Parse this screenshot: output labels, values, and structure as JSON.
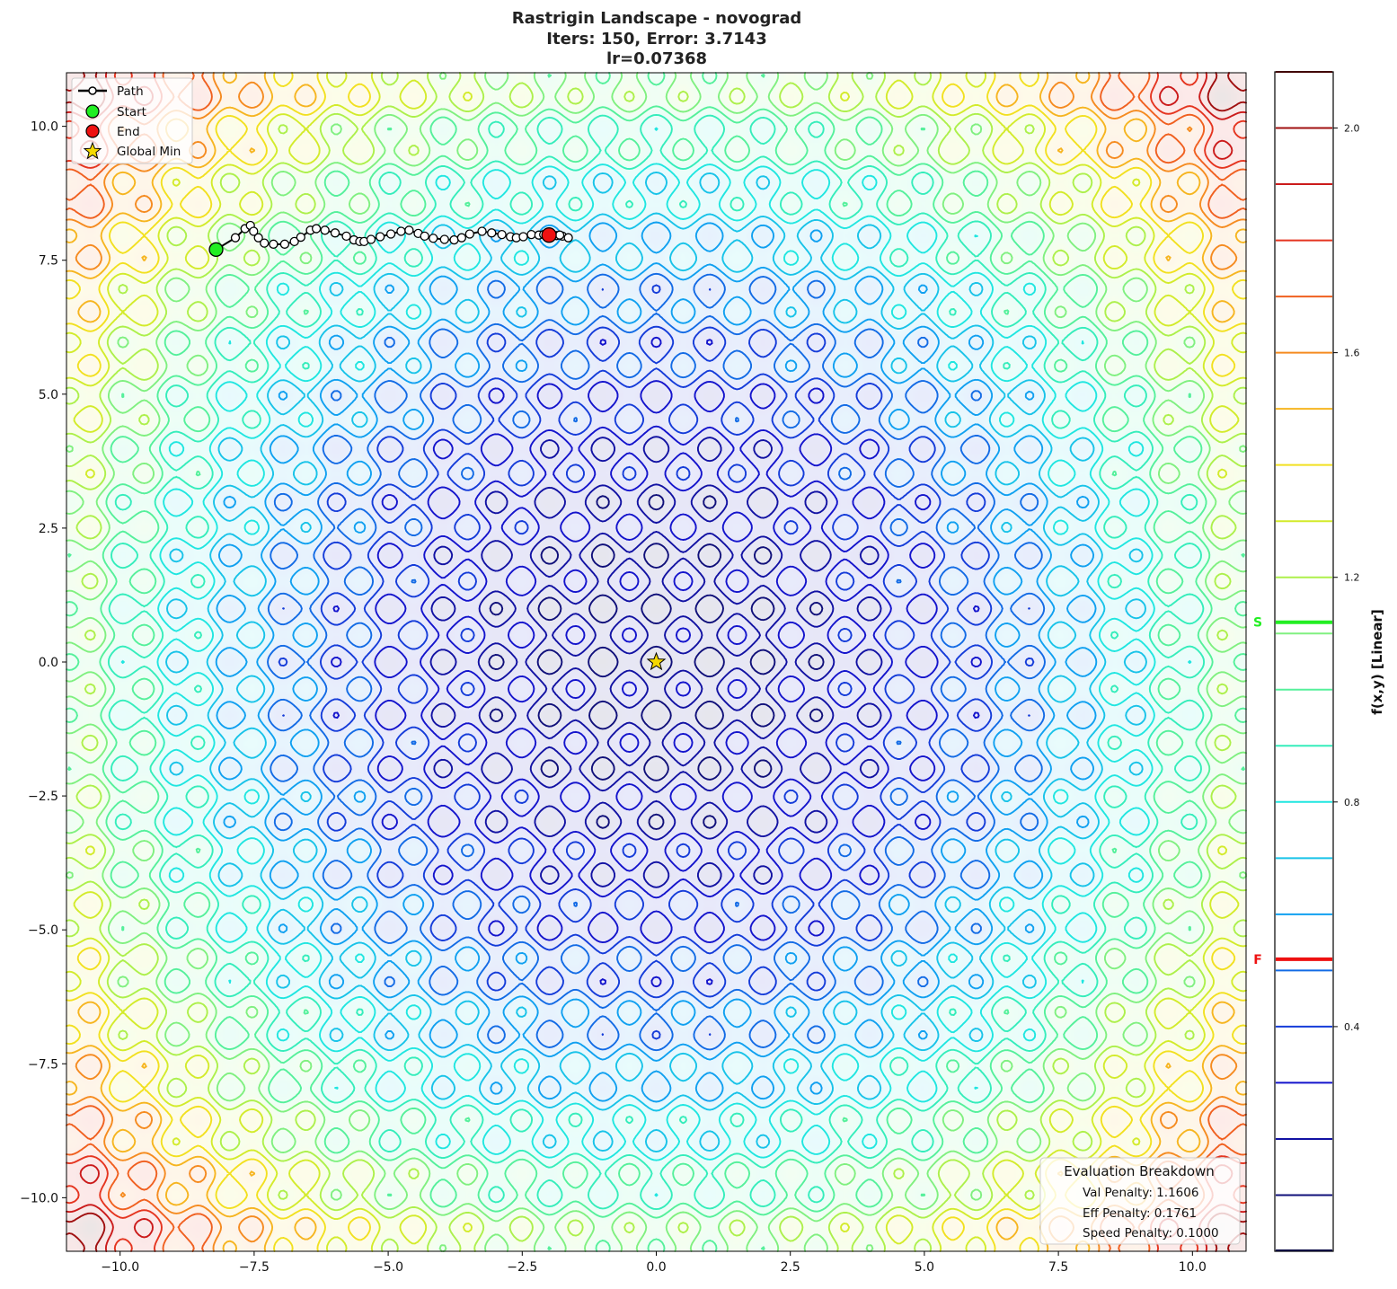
{
  "title": {
    "line1": "Rastrigin Landscape - novograd",
    "line2": "Iters: 150, Error: 3.7143",
    "line3": "lr=0.07368"
  },
  "legend": {
    "path": "Path",
    "start": "Start",
    "end": "End",
    "global_min": "Global Min"
  },
  "evaluation": {
    "title": "Evaluation Breakdown",
    "val": "Val Penalty: 1.1606",
    "eff": "Eff Penalty: 0.1761",
    "speed": "Speed Penalty: 0.1000"
  },
  "colorbar": {
    "label": "f(x,y) [Linear]",
    "range": [
      0,
      2.1
    ],
    "ticks": [
      0.4,
      0.8,
      1.2,
      1.6,
      2.0
    ],
    "tick_labels": [
      "0.4",
      "0.8",
      "1.2",
      "1.6",
      "2.0"
    ],
    "levels": [
      0.1,
      0.2,
      0.3,
      0.4,
      0.5,
      0.6,
      0.7,
      0.8,
      0.9,
      1.0,
      1.1,
      1.2,
      1.3,
      1.4,
      1.5,
      1.6,
      1.7,
      1.8,
      1.9,
      2.0,
      2.1
    ],
    "start_marker": {
      "label": "S",
      "value": 1.12,
      "color": "#22ee22"
    },
    "final_marker": {
      "label": "F",
      "value": 0.52,
      "color": "#ee1111"
    }
  },
  "chart_data": {
    "type": "contour",
    "function": "rastrigin",
    "xlim": [
      -11,
      11
    ],
    "ylim": [
      -11,
      11
    ],
    "xticks": [
      -10,
      -7.5,
      -5,
      -2.5,
      0,
      2.5,
      5,
      7.5,
      10
    ],
    "xtick_labels": [
      "−10.0",
      "−7.5",
      "−5.0",
      "−2.5",
      "0.0",
      "2.5",
      "5.0",
      "7.5",
      "10.0"
    ],
    "yticks": [
      -10,
      -7.5,
      -5,
      -2.5,
      0,
      2.5,
      5,
      7.5,
      10
    ],
    "ytick_labels": [
      "−10.0",
      "−7.5",
      "−5.0",
      "−2.5",
      "0.0",
      "2.5",
      "5.0",
      "7.5",
      "10.0"
    ],
    "grid": false,
    "legend_position": "top-left",
    "annotation_position": "bottom-right",
    "colormap": [
      [
        0.0,
        "#000040"
      ],
      [
        0.1,
        "#10107a"
      ],
      [
        0.3,
        "#1414cc"
      ],
      [
        0.45,
        "#1550e0"
      ],
      [
        0.6,
        "#10a0f0"
      ],
      [
        0.8,
        "#20e6e0"
      ],
      [
        0.95,
        "#40f0a8"
      ],
      [
        1.1,
        "#80f080"
      ],
      [
        1.25,
        "#c4f030"
      ],
      [
        1.4,
        "#f2e020"
      ],
      [
        1.55,
        "#f8a020"
      ],
      [
        1.7,
        "#f06020"
      ],
      [
        1.85,
        "#e02020"
      ],
      [
        2.0,
        "#a01010"
      ],
      [
        2.1,
        "#400000"
      ]
    ],
    "path": [
      [
        -8.21,
        7.7
      ],
      [
        -7.85,
        7.92
      ],
      [
        -7.67,
        8.09
      ],
      [
        -7.57,
        8.15
      ],
      [
        -7.51,
        8.04
      ],
      [
        -7.42,
        7.92
      ],
      [
        -7.31,
        7.82
      ],
      [
        -7.14,
        7.8
      ],
      [
        -6.93,
        7.8
      ],
      [
        -6.75,
        7.85
      ],
      [
        -6.63,
        7.93
      ],
      [
        -6.45,
        8.06
      ],
      [
        -6.34,
        8.09
      ],
      [
        -6.18,
        8.06
      ],
      [
        -5.99,
        8.01
      ],
      [
        -5.78,
        7.95
      ],
      [
        -5.64,
        7.88
      ],
      [
        -5.53,
        7.85
      ],
      [
        -5.45,
        7.85
      ],
      [
        -5.32,
        7.89
      ],
      [
        -5.15,
        7.94
      ],
      [
        -4.95,
        7.99
      ],
      [
        -4.76,
        8.04
      ],
      [
        -4.61,
        8.06
      ],
      [
        -4.44,
        8.0
      ],
      [
        -4.32,
        7.95
      ],
      [
        -4.16,
        7.91
      ],
      [
        -3.95,
        7.89
      ],
      [
        -3.77,
        7.88
      ],
      [
        -3.63,
        7.92
      ],
      [
        -3.48,
        7.99
      ],
      [
        -3.25,
        8.04
      ],
      [
        -3.07,
        8.01
      ],
      [
        -2.88,
        7.98
      ],
      [
        -2.72,
        7.94
      ],
      [
        -2.61,
        7.92
      ],
      [
        -2.48,
        7.94
      ],
      [
        -2.33,
        7.98
      ],
      [
        -2.19,
        7.97
      ],
      [
        -2.1,
        7.98
      ],
      [
        -1.86,
        7.96
      ],
      [
        -1.75,
        7.95
      ],
      [
        -1.64,
        7.92
      ],
      [
        -1.8,
        7.97
      ],
      [
        -2.0,
        7.97
      ]
    ],
    "start": [
      -8.21,
      7.7
    ],
    "end": [
      -2.0,
      7.97
    ],
    "global_min": [
      0,
      0
    ],
    "colors": {
      "start": "#22ee22",
      "end": "#ee1111",
      "global_min": "#f5d800",
      "path": "#000000"
    }
  }
}
